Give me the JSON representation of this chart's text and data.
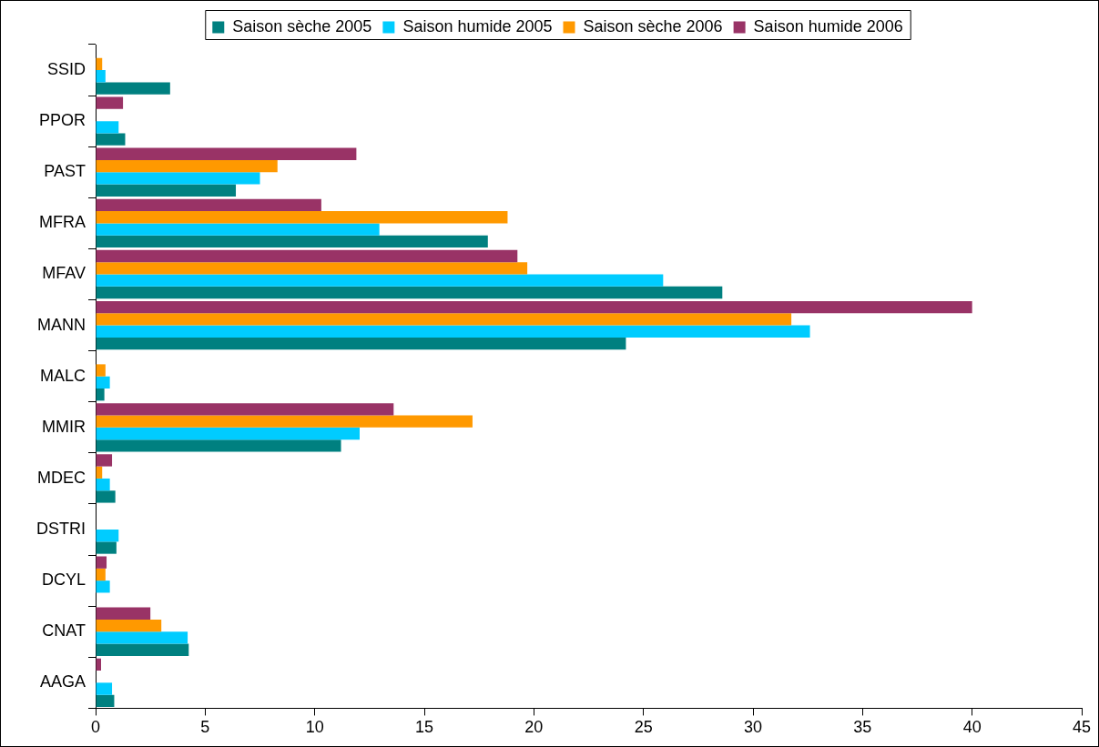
{
  "chart_data": {
    "type": "bar",
    "orientation": "horizontal",
    "categories": [
      "SSID",
      "PPOR",
      "PAST",
      "MFRA",
      "MFAV",
      "MANN",
      "MALC",
      "MMIR",
      "MDEC",
      "DSTRI",
      "DCYL",
      "CNAT",
      "AAGA"
    ],
    "series": [
      {
        "name": "Saison sèche 2005",
        "color": "#008080",
        "values": [
          3.4,
          1.35,
          6.4,
          17.9,
          28.6,
          24.2,
          0.4,
          11.2,
          0.9,
          0.95,
          null,
          4.25,
          0.85
        ]
      },
      {
        "name": "Saison humide 2005",
        "color": "#00ccff",
        "values": [
          0.45,
          1.05,
          7.5,
          12.95,
          25.9,
          32.6,
          0.65,
          12.05,
          0.65,
          1.05,
          0.65,
          4.2,
          0.75
        ]
      },
      {
        "name": "Saison sèche 2006",
        "color": "#ff9900",
        "values": [
          0.3,
          null,
          8.3,
          18.8,
          19.7,
          31.75,
          0.45,
          17.2,
          0.3,
          null,
          0.45,
          3.0,
          null
        ]
      },
      {
        "name": "Saison humide 2006",
        "color": "#993366",
        "values": [
          null,
          1.25,
          11.9,
          10.3,
          19.25,
          40.0,
          null,
          13.6,
          0.75,
          null,
          0.5,
          2.5,
          0.25
        ]
      }
    ],
    "xlim": [
      0,
      45
    ],
    "xticks": [
      0,
      5,
      10,
      15,
      20,
      25,
      30,
      35,
      40,
      45
    ],
    "grid": false,
    "legend": "top"
  }
}
